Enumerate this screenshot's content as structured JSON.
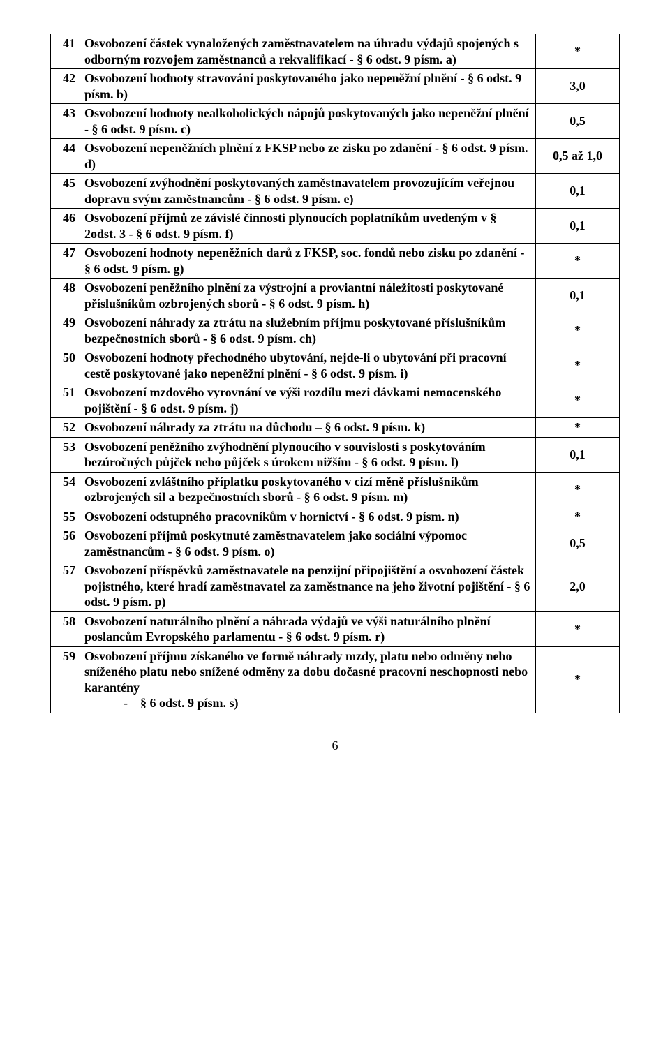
{
  "rows": [
    {
      "n": "41",
      "text": "Osvobození částek vynaložených zaměstnavatelem na úhradu výdajů spojených s odborným rozvojem zaměstnanců a rekvalifikací - § 6 odst. 9 písm. a)",
      "val": "*"
    },
    {
      "n": "42",
      "text": "Osvobození hodnoty stravování poskytovaného jako nepeněžní plnění - § 6 odst. 9 písm. b)",
      "val": "3,0"
    },
    {
      "n": "43",
      "text": "Osvobození hodnoty nealkoholických nápojů poskytovaných jako nepeněžní plnění - § 6 odst. 9 písm. c)",
      "val": "0,5"
    },
    {
      "n": "44",
      "text": "Osvobození nepeněžních plnění z FKSP nebo ze zisku po zdanění - § 6 odst. 9 písm. d)",
      "val": "0,5 až 1,0"
    },
    {
      "n": "45",
      "text": "Osvobození zvýhodnění poskytovaných zaměstnavatelem provozujícím veřejnou dopravu svým zaměstnancům - § 6 odst. 9 písm. e)",
      "val": "0,1"
    },
    {
      "n": "46",
      "text": "Osvobození příjmů ze závislé činnosti plynoucích poplatníkům uvedeným v § 2odst. 3 - § 6 odst. 9 písm. f)",
      "val": "0,1"
    },
    {
      "n": "47",
      "text": "Osvobození hodnoty nepeněžních darů z FKSP, soc. fondů nebo zisku po zdanění - § 6 odst. 9 písm. g)",
      "val": "*"
    },
    {
      "n": "48",
      "text": "Osvobození peněžního plnění za výstrojní a proviantní náležitosti poskytované příslušníkům ozbrojených sborů - § 6 odst. 9 písm. h)",
      "val": "0,1"
    },
    {
      "n": "49",
      "text": "Osvobození náhrady za ztrátu na služebním příjmu poskytované příslušníkům bezpečnostních sborů - § 6 odst. 9 písm. ch)",
      "val": "*"
    },
    {
      "n": "50",
      "text": "Osvobození hodnoty přechodného ubytování, nejde-li o ubytování při pracovní cestě poskytované jako nepeněžní plnění - § 6 odst. 9 písm. i)",
      "val": "*"
    },
    {
      "n": "51",
      "text": "Osvobození mzdového vyrovnání ve výši rozdílu mezi dávkami nemocenského pojištění - § 6 odst. 9 písm. j)",
      "val": "*"
    },
    {
      "n": "52",
      "text": "Osvobození náhrady za ztrátu na důchodu – § 6 odst. 9 písm. k)",
      "val": "*"
    },
    {
      "n": "53",
      "text": "Osvobození peněžního zvýhodnění plynoucího v souvislosti s poskytováním bezúročných půjček nebo půjček s úrokem nižším - § 6 odst. 9 písm. l)",
      "val": "0,1"
    },
    {
      "n": "54",
      "text": "Osvobození zvláštního příplatku poskytovaného v cizí měně příslušníkům ozbrojených sil a bezpečnostních sborů - § 6 odst. 9 písm. m)",
      "val": "*"
    },
    {
      "n": "55",
      "text": "Osvobození odstupného pracovníkům v hornictví  - § 6 odst. 9 písm. n)",
      "val": "*"
    },
    {
      "n": "56",
      "text": "Osvobození příjmů poskytnuté zaměstnavatelem jako sociální výpomoc zaměstnancům - § 6 odst. 9 písm. o)",
      "val": "0,5"
    },
    {
      "n": "57",
      "text": "Osvobození příspěvků zaměstnavatele na penzijní připojištění a osvobození částek pojistného, které hradí zaměstnavatel za zaměstnance na jeho životní pojištění - § 6 odst. 9 písm. p)",
      "val": "2,0"
    },
    {
      "n": "58",
      "text": "Osvobození naturálního plnění a náhrada výdajů ve výši naturálního plnění  poslancům Evropského parlamentu  - § 6 odst. 9 písm. r)",
      "val": "*"
    },
    {
      "n": "59",
      "text": "Osvobození příjmu získaného ve formě náhrady mzdy, platu nebo odměny nebo sníženého platu nebo snížené odměny za dobu dočasné pracovní neschopnosti nebo karantény",
      "extra": "§ 6 odst. 9 písm. s)",
      "val": "*"
    }
  ],
  "pagenum": "6"
}
